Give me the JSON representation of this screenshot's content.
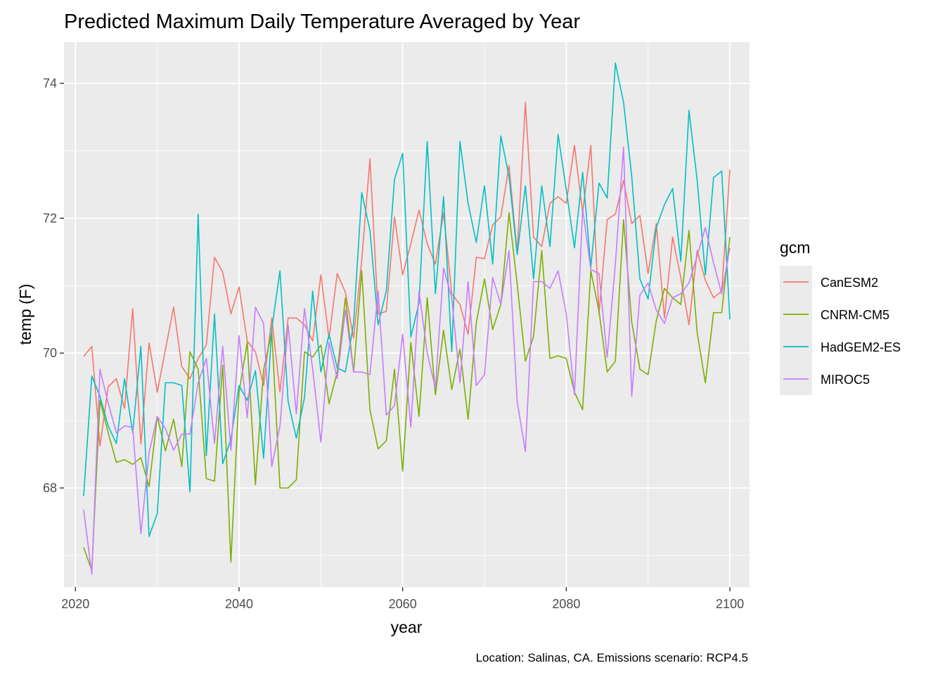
{
  "chart_data": {
    "type": "line",
    "title": "Predicted Maximum Daily Temperature Averaged by Year",
    "xlabel": "year",
    "ylabel": "temp (F)",
    "caption": "Location: Salinas, CA. Emissions scenario: RCP4.5",
    "legend_title": "gcm",
    "legend_position": "right",
    "grid": true,
    "xlim": [
      2018.6,
      2102.4
    ],
    "ylim": [
      66.53,
      74.61
    ],
    "x_ticks": [
      2020,
      2040,
      2060,
      2080,
      2100
    ],
    "y_ticks": [
      68,
      70,
      72,
      74
    ],
    "x": [
      2021,
      2022,
      2023,
      2024,
      2025,
      2026,
      2027,
      2028,
      2029,
      2030,
      2031,
      2032,
      2033,
      2034,
      2035,
      2036,
      2037,
      2038,
      2039,
      2040,
      2041,
      2042,
      2043,
      2044,
      2045,
      2046,
      2047,
      2048,
      2049,
      2050,
      2051,
      2052,
      2053,
      2054,
      2055,
      2056,
      2057,
      2058,
      2059,
      2060,
      2061,
      2062,
      2063,
      2064,
      2065,
      2066,
      2067,
      2068,
      2069,
      2070,
      2071,
      2072,
      2073,
      2074,
      2075,
      2076,
      2077,
      2078,
      2079,
      2080,
      2081,
      2082,
      2083,
      2084,
      2085,
      2086,
      2087,
      2088,
      2089,
      2090,
      2091,
      2092,
      2093,
      2094,
      2095,
      2096,
      2097,
      2098,
      2099,
      2100
    ],
    "series": [
      {
        "name": "CanESM2",
        "color": "#F8766D",
        "values": [
          69.95,
          70.1,
          68.62,
          69.5,
          69.62,
          69.18,
          70.66,
          68.65,
          70.15,
          69.42,
          70.05,
          70.68,
          69.8,
          69.62,
          69.92,
          70.12,
          71.42,
          71.2,
          70.58,
          70.98,
          70.18,
          70.02,
          69.52,
          70.52,
          69.42,
          70.52,
          70.52,
          70.42,
          70.18,
          71.16,
          70.22,
          71.18,
          70.9,
          70.22,
          71.38,
          72.88,
          70.58,
          70.62,
          72.02,
          71.16,
          71.62,
          72.12,
          71.62,
          71.32,
          72.08,
          70.88,
          70.72,
          70.28,
          71.42,
          71.4,
          71.9,
          72.02,
          72.78,
          71.48,
          73.72,
          71.72,
          71.58,
          72.22,
          72.32,
          72.22,
          73.08,
          72.08,
          73.08,
          70.58,
          71.98,
          72.06,
          72.56,
          71.92,
          72.04,
          71.18,
          71.92,
          70.52,
          71.72,
          71.12,
          70.42,
          71.52,
          71.08,
          70.82,
          70.92,
          72.72
        ]
      },
      {
        "name": "CNRM-CM5",
        "color": "#7CAE00",
        "values": [
          67.12,
          66.78,
          69.3,
          68.82,
          68.38,
          68.42,
          68.35,
          68.45,
          68.02,
          69.06,
          68.55,
          69.02,
          68.32,
          70.02,
          69.76,
          68.14,
          68.1,
          69.82,
          66.9,
          69.42,
          70.16,
          68.05,
          69.75,
          70.32,
          68.0,
          68.0,
          68.12,
          70.02,
          69.94,
          70.12,
          69.25,
          69.72,
          70.82,
          69.72,
          71.22,
          69.16,
          68.58,
          68.7,
          69.76,
          68.25,
          70.16,
          69.06,
          70.82,
          69.38,
          70.34,
          69.46,
          70.06,
          69.02,
          70.45,
          71.1,
          70.35,
          70.72,
          72.08,
          71.02,
          69.88,
          70.25,
          71.52,
          69.92,
          69.96,
          69.92,
          69.42,
          69.16,
          71.22,
          70.62,
          69.72,
          69.88,
          71.98,
          70.46,
          69.76,
          69.68,
          70.48,
          70.96,
          70.82,
          70.72,
          71.82,
          70.3,
          69.56,
          70.6,
          70.6,
          71.72
        ]
      },
      {
        "name": "HadGEM2-ES",
        "color": "#00BFC4",
        "values": [
          67.88,
          69.66,
          69.36,
          68.92,
          68.66,
          69.62,
          68.82,
          70.1,
          67.28,
          67.62,
          69.56,
          69.56,
          69.52,
          67.94,
          72.06,
          68.48,
          70.58,
          68.36,
          68.72,
          69.52,
          69.3,
          69.74,
          68.44,
          70.36,
          71.22,
          69.28,
          68.74,
          69.34,
          70.92,
          69.72,
          70.28,
          69.78,
          69.72,
          70.44,
          72.38,
          71.82,
          70.42,
          70.92,
          72.58,
          72.96,
          70.24,
          70.74,
          73.14,
          70.88,
          72.32,
          70.02,
          73.14,
          72.22,
          71.64,
          72.48,
          71.32,
          73.22,
          72.62,
          71.46,
          72.48,
          71.1,
          72.48,
          71.58,
          73.24,
          72.42,
          71.56,
          72.68,
          71.28,
          72.52,
          72.3,
          74.3,
          73.72,
          72.62,
          71.1,
          70.8,
          71.86,
          72.2,
          72.44,
          71.36,
          73.6,
          72.56,
          71.16,
          72.6,
          72.7,
          70.5
        ]
      },
      {
        "name": "MIROC5",
        "color": "#C77CFF",
        "values": [
          67.68,
          66.72,
          69.76,
          69.26,
          68.82,
          68.92,
          68.9,
          67.32,
          68.52,
          69.06,
          68.88,
          68.56,
          68.8,
          68.8,
          69.56,
          69.92,
          68.66,
          70.1,
          68.56,
          70.26,
          69.04,
          70.68,
          70.44,
          68.32,
          68.92,
          70.42,
          69.1,
          70.66,
          69.76,
          68.68,
          70.16,
          69.62,
          70.64,
          69.72,
          69.72,
          69.68,
          70.92,
          69.08,
          69.22,
          70.28,
          68.9,
          70.92,
          70.0,
          69.48,
          71.26,
          70.82,
          69.56,
          71.06,
          69.52,
          69.68,
          71.12,
          70.72,
          71.52,
          69.28,
          68.54,
          71.06,
          71.06,
          70.96,
          71.22,
          70.58,
          69.38,
          72.14,
          71.24,
          71.18,
          69.94,
          71.32,
          73.06,
          69.36,
          70.86,
          71.04,
          70.64,
          70.44,
          70.82,
          70.88,
          71.04,
          71.44,
          71.86,
          71.34,
          70.88,
          71.56
        ]
      }
    ]
  }
}
